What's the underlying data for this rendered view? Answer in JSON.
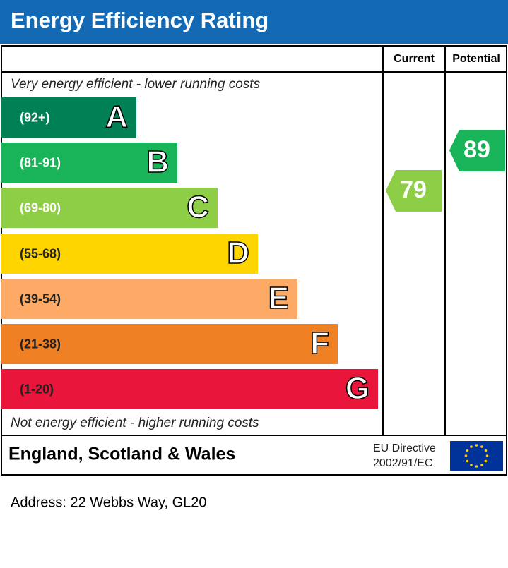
{
  "header": {
    "title": "Energy Efficiency Rating"
  },
  "columns": {
    "current": "Current",
    "potential": "Potential"
  },
  "top_note": "Very energy efficient - lower running costs",
  "bottom_note": "Not energy efficient - higher running costs",
  "bands": [
    {
      "range": "(92+)",
      "letter": "A"
    },
    {
      "range": "(81-91)",
      "letter": "B"
    },
    {
      "range": "(69-80)",
      "letter": "C"
    },
    {
      "range": "(55-68)",
      "letter": "D"
    },
    {
      "range": "(39-54)",
      "letter": "E"
    },
    {
      "range": "(21-38)",
      "letter": "F"
    },
    {
      "range": "(1-20)",
      "letter": "G"
    }
  ],
  "current": 79,
  "potential": 89,
  "footer": {
    "region": "England, Scotland & Wales",
    "directive_line1": "EU Directive",
    "directive_line2": "2002/91/EC"
  },
  "address": "Address: 22 Webbs Way, GL20"
}
